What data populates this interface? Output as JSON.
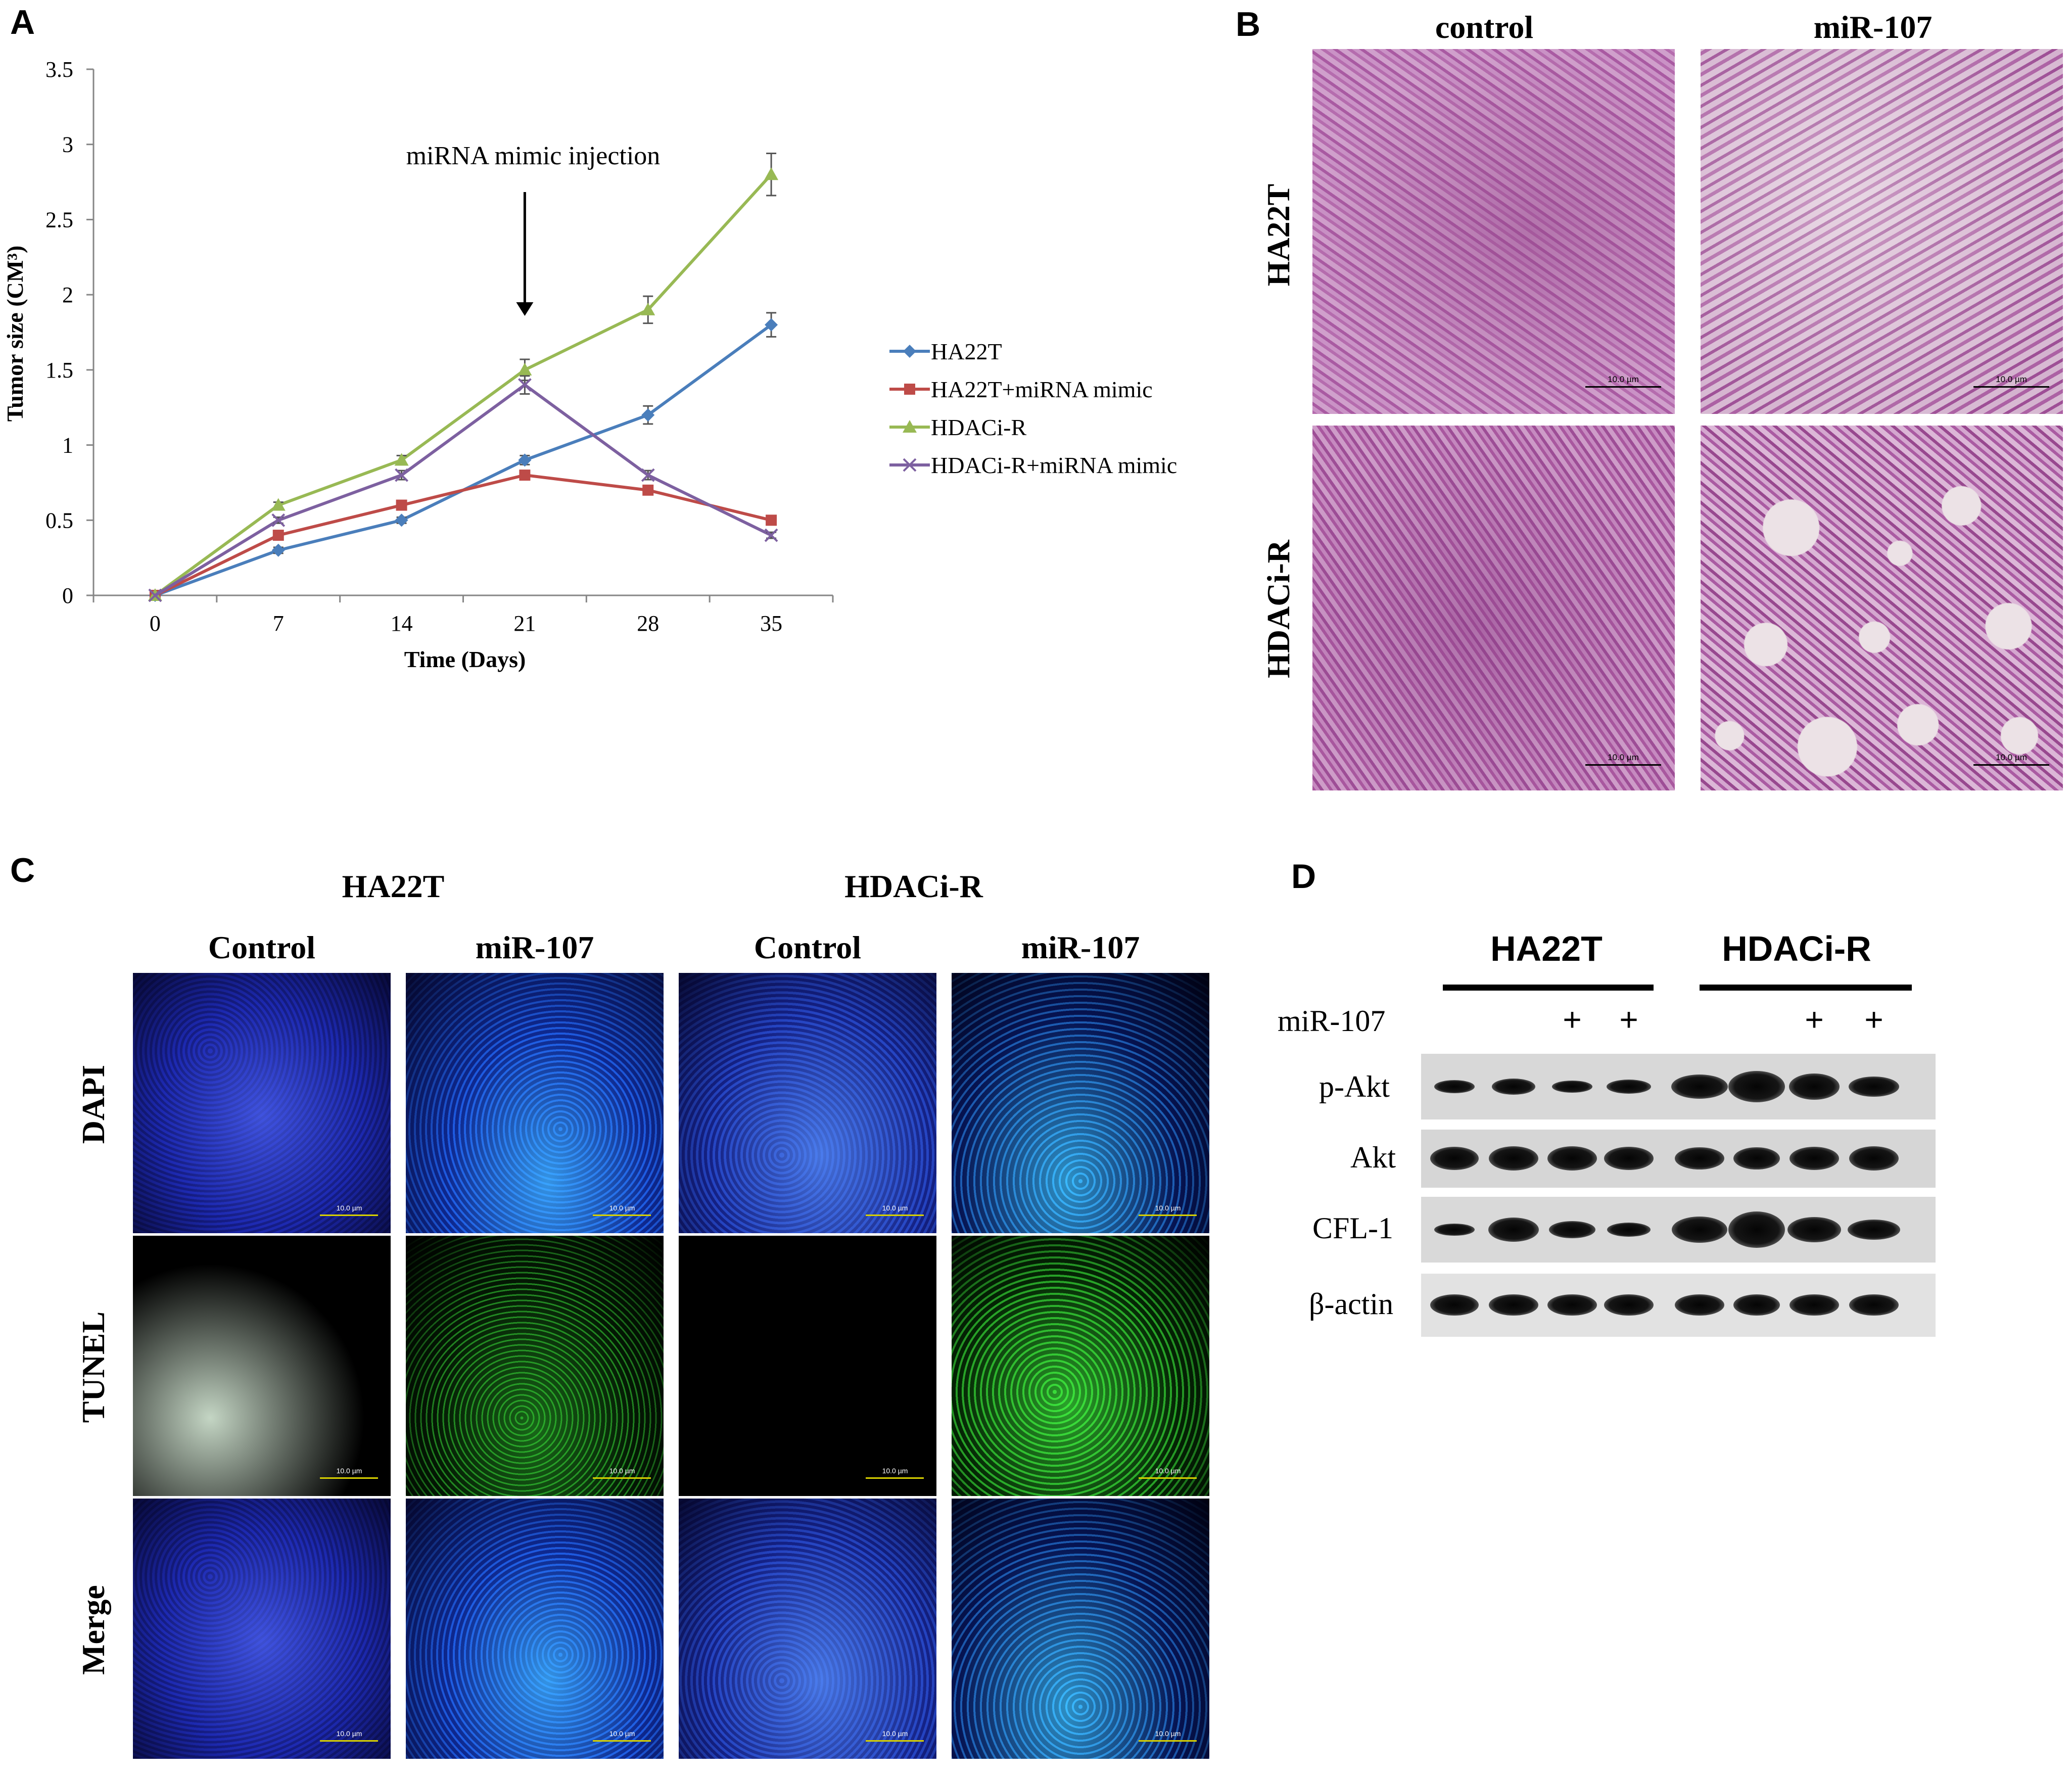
{
  "panels": {
    "A": "A",
    "B": "B",
    "C": "C",
    "D": "D"
  },
  "colors": {
    "blue": "#4a7ebb",
    "red": "#be4b48",
    "green": "#98b954",
    "purple": "#7d60a0"
  },
  "chart_data": {
    "type": "line",
    "title": "",
    "xlabel": "Time (Days)",
    "ylabel": "Tumor size (CM³)",
    "x": [
      0,
      7,
      14,
      21,
      28,
      35
    ],
    "xlim": [
      -3.5,
      38.5
    ],
    "ylim": [
      0,
      3.5
    ],
    "yticks": [
      "0",
      "0.5",
      "1",
      "1.5",
      "2",
      "2.5",
      "3",
      "3.5"
    ],
    "annotation": "miRNA  mimic injection",
    "annotation_x": 21,
    "legend_position": "right",
    "series": [
      {
        "name": "HA22T",
        "color": "#4a7ebb",
        "marker": "diamond",
        "values": [
          0,
          0.3,
          0.5,
          0.9,
          1.2,
          1.8
        ],
        "errors": [
          0,
          0.02,
          0.02,
          0.03,
          0.06,
          0.08
        ]
      },
      {
        "name": "HA22T+miRNA mimic",
        "color": "#be4b48",
        "marker": "square",
        "values": [
          0,
          0.4,
          0.6,
          0.8,
          0.7,
          0.5
        ],
        "errors": [
          0,
          0.02,
          0.02,
          0.02,
          0.02,
          0.02
        ]
      },
      {
        "name": "HDACi-R",
        "color": "#98b954",
        "marker": "triangle",
        "values": [
          0,
          0.6,
          0.9,
          1.5,
          1.9,
          2.8
        ],
        "errors": [
          0,
          0.02,
          0.03,
          0.07,
          0.09,
          0.14
        ]
      },
      {
        "name": "HDACi-R+miRNA mimic",
        "color": "#7d60a0",
        "marker": "x",
        "values": [
          0,
          0.5,
          0.8,
          1.4,
          0.8,
          0.4
        ],
        "errors": [
          0,
          0.02,
          0.03,
          0.06,
          0.03,
          0.02
        ]
      }
    ]
  },
  "panel_b": {
    "columns": [
      "control",
      "miR-107"
    ],
    "rows": [
      "HA22T",
      "HDACi-R"
    ],
    "scale_label": "10.0 µm"
  },
  "panel_c": {
    "groups": [
      "HA22T",
      "HDACi-R"
    ],
    "columns": [
      "Control",
      "miR-107",
      "Control",
      "miR-107"
    ],
    "rows": [
      "DAPI",
      "TUNEL",
      "Merge"
    ],
    "scale_label": "10.0 µm"
  },
  "panel_d": {
    "groups": [
      "HA22T",
      "HDACi-R"
    ],
    "treatment_label": "miR-107",
    "treatment": [
      "",
      "",
      "+",
      "+",
      "",
      "",
      "+",
      "+"
    ],
    "rows": [
      "p-Akt",
      "Akt",
      "CFL-1",
      "β-actin"
    ]
  }
}
